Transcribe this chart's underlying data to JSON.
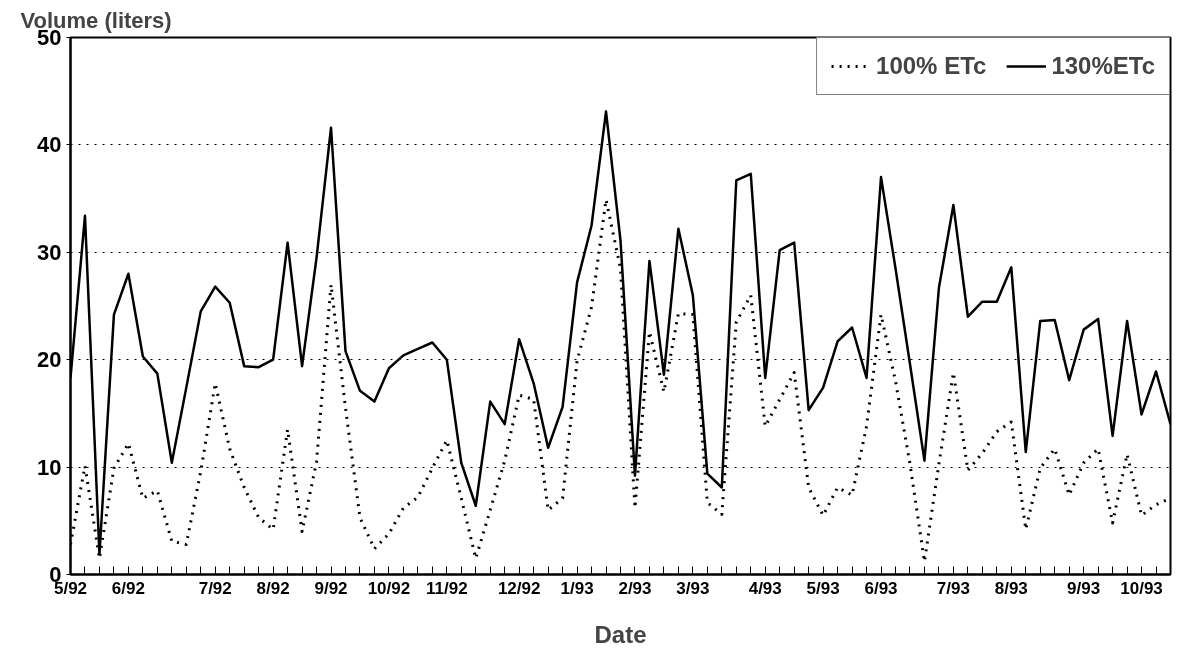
{
  "chart_data": {
    "type": "line",
    "xlabel": "Date",
    "ylabel": "Volume (liters)",
    "categories": [
      "5/92",
      null,
      null,
      null,
      "6/92",
      null,
      null,
      null,
      null,
      null,
      "7/92",
      null,
      null,
      null,
      "8/92",
      null,
      null,
      null,
      "9/92",
      null,
      null,
      null,
      "10/92",
      null,
      null,
      null,
      "11/92",
      null,
      null,
      null,
      null,
      "12/92",
      null,
      null,
      null,
      "1/93",
      null,
      null,
      null,
      "2/93",
      null,
      null,
      null,
      "3/93",
      null,
      null,
      null,
      null,
      "4/93",
      null,
      null,
      null,
      "5/93",
      null,
      null,
      null,
      "6/93",
      null,
      null,
      null,
      null,
      "7/93",
      null,
      null,
      null,
      "8/93",
      null,
      null,
      null,
      null,
      "9/93",
      null,
      null,
      null,
      "10/93",
      null,
      null
    ],
    "series": [
      {
        "name": "100% ETc",
        "color": "#000000",
        "line_style": "dotted",
        "values": [
          2.8,
          10.1,
          1.5,
          9.9,
          12.2,
          7.1,
          7.8,
          3.1,
          2.8,
          9.6,
          17.8,
          11.7,
          8.1,
          5.3,
          4.2,
          13.5,
          4.0,
          10.5,
          27.0,
          15.5,
          5.3,
          2.4,
          3.8,
          6.2,
          7.2,
          9.9,
          12.5,
          7.1,
          1.5,
          6.0,
          10.6,
          16.7,
          16.3,
          6.0,
          7.1,
          19.9,
          24.9,
          34.9,
          28.5,
          6.2,
          22.6,
          17.0,
          24.3,
          24.2,
          6.7,
          5.6,
          23.5,
          26.0,
          13.8,
          16.3,
          18.8,
          8.1,
          5.5,
          8.1,
          7.4,
          13.8,
          24.2,
          18.0,
          10.3,
          1.2,
          10.3,
          18.8,
          9.7,
          11.3,
          13.3,
          14.2,
          4.2,
          9.9,
          11.7,
          7.4,
          10.4,
          11.7,
          4.8,
          11.2,
          5.5,
          6.5,
          7.1
        ]
      },
      {
        "name": "130%ETc",
        "color": "#000000",
        "line_style": "solid",
        "values": [
          18.3,
          33.4,
          1.9,
          24.2,
          28.0,
          20.3,
          18.7,
          10.4,
          17.4,
          24.5,
          26.8,
          25.3,
          19.4,
          19.3,
          20.0,
          30.9,
          19.4,
          29.5,
          41.6,
          20.8,
          17.1,
          16.1,
          19.2,
          20.4,
          21.0,
          21.6,
          20.0,
          10.4,
          6.4,
          16.1,
          14.0,
          21.9,
          17.8,
          11.8,
          15.6,
          27.2,
          32.5,
          43.1,
          31.1,
          9.2,
          29.2,
          18.6,
          32.2,
          26.0,
          9.4,
          8.1,
          36.7,
          37.3,
          18.3,
          30.2,
          30.9,
          15.3,
          17.4,
          21.7,
          23.0,
          18.3,
          37.0,
          28.5,
          19.6,
          10.6,
          26.7,
          34.4,
          24.0,
          25.4,
          25.4,
          28.6,
          11.4,
          23.6,
          23.7,
          18.1,
          22.8,
          23.8,
          12.9,
          23.6,
          14.9,
          18.9,
          14.0
        ]
      }
    ],
    "ylim": [
      0,
      50
    ],
    "yticks": [
      0,
      10,
      20,
      30,
      40,
      50
    ],
    "grid": "y",
    "legend": "top right"
  }
}
